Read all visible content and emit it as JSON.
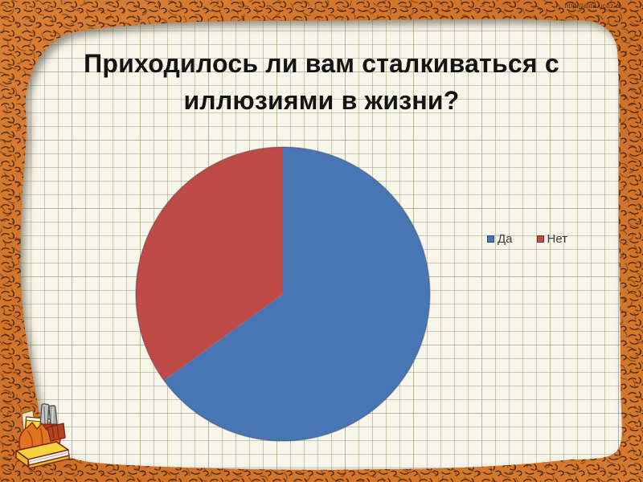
{
  "slide": {
    "title": "Приходилось ли вам сталкиваться с иллюзиями в жизни?",
    "watermark": "http://aida.ucoz.ru"
  },
  "chart_data": {
    "type": "pie",
    "title": "Приходилось ли вам сталкиваться с иллюзиями в жизни?",
    "labels": [
      "Да",
      "Нет"
    ],
    "values": [
      65,
      35
    ],
    "colors": [
      "#4876B4",
      "#BE4B48"
    ],
    "legend_position": "right",
    "start_angle_deg": 0,
    "direction": "clockwise",
    "value_labels_shown": false
  },
  "decor": {
    "frame_color": "#d0722a",
    "scribble_color": "#3c1d06",
    "paper_color": "#f8f5ea",
    "grid_line_color": "#94926c",
    "books_clipart": "books-and-pencils"
  }
}
